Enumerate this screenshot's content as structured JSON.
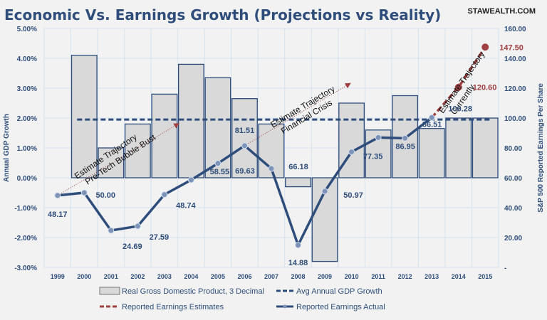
{
  "chart_data": {
    "type": "bar",
    "title": "Economic Vs. Earnings Growth (Projections vs Reality)",
    "watermark": "STAWEALTH.COM",
    "categories": [
      "1999",
      "2000",
      "2001",
      "2002",
      "2003",
      "2004",
      "2005",
      "2006",
      "2007",
      "2008",
      "2009",
      "2010",
      "2011",
      "2012",
      "2013",
      "2014",
      "2015"
    ],
    "y_left": {
      "label": "Annual GDP Growth",
      "min": -3,
      "max": 5,
      "ticks": [
        "-3.00%",
        "-2.00%",
        "-1.00%",
        "0.00%",
        "1.00%",
        "2.00%",
        "3.00%",
        "4.00%",
        "5.00%"
      ],
      "tick_values": [
        -3,
        -2,
        -1,
        0,
        1,
        2,
        3,
        4,
        5
      ]
    },
    "y_right": {
      "label": "S&P 500 Reported Earnings Per Share",
      "min": 0,
      "max": 160,
      "ticks": [
        "-",
        "20.00",
        "40.00",
        "60.00",
        "80.00",
        "100.00",
        "120.00",
        "140.00",
        "160.00"
      ],
      "tick_values": [
        0,
        20,
        40,
        60,
        80,
        100,
        120,
        140,
        160
      ]
    },
    "grid": true,
    "legend_position": "bottom",
    "series": [
      {
        "name": "Real Gross Domestic Product, 3 Decimal",
        "type": "bar",
        "axis": "left",
        "color": "#d9d9d9",
        "edge": "#2e4d7b",
        "values": [
          null,
          4.1,
          1.0,
          1.8,
          2.8,
          3.8,
          3.35,
          2.65,
          1.8,
          -0.3,
          -2.8,
          2.5,
          1.6,
          2.75,
          1.65,
          2.0,
          2.0
        ]
      },
      {
        "name": "Avg Annual GDP Growth",
        "type": "line-dashed",
        "axis": "left",
        "color": "#2e4d7b",
        "values": [
          null,
          1.95,
          1.95,
          1.95,
          1.95,
          1.95,
          1.95,
          1.95,
          1.95,
          1.95,
          1.95,
          1.95,
          1.95,
          1.95,
          1.95,
          1.95,
          1.95
        ]
      },
      {
        "name": "Reported Earnings Estimates",
        "type": "line-dashed",
        "axis": "right",
        "color": "#a04040",
        "values": [
          null,
          null,
          null,
          null,
          null,
          null,
          null,
          null,
          null,
          null,
          null,
          null,
          null,
          null,
          100.28,
          120.6,
          147.5
        ],
        "labels": [
          null,
          null,
          null,
          null,
          null,
          null,
          null,
          null,
          null,
          null,
          null,
          null,
          null,
          null,
          null,
          "120.60",
          "147.50"
        ]
      },
      {
        "name": "Reported Earnings Actual",
        "type": "line",
        "axis": "right",
        "color": "#2e4d7b",
        "values": [
          48.17,
          50.0,
          24.69,
          27.59,
          48.74,
          58.55,
          69.63,
          81.51,
          66.18,
          14.88,
          50.97,
          77.35,
          86.95,
          86.51,
          100.28,
          null,
          null
        ],
        "labels": [
          "48.17",
          "50.00",
          "24.69",
          "27.59",
          "48.74",
          "58.55",
          "69.63",
          "81.51",
          "66.18",
          "14.88",
          "50.97",
          "77.35",
          "86.95",
          "86.51",
          "100.28",
          null,
          null
        ]
      }
    ],
    "annotations": [
      {
        "line1": "Estimate Trajectory",
        "line2": "Pre-Tech Bubble Bust"
      },
      {
        "line1": "Estimate Trajectory",
        "line2": "Financial Crisis"
      },
      {
        "line1": "Estimate Trajectory",
        "line2": "Currently"
      }
    ]
  }
}
